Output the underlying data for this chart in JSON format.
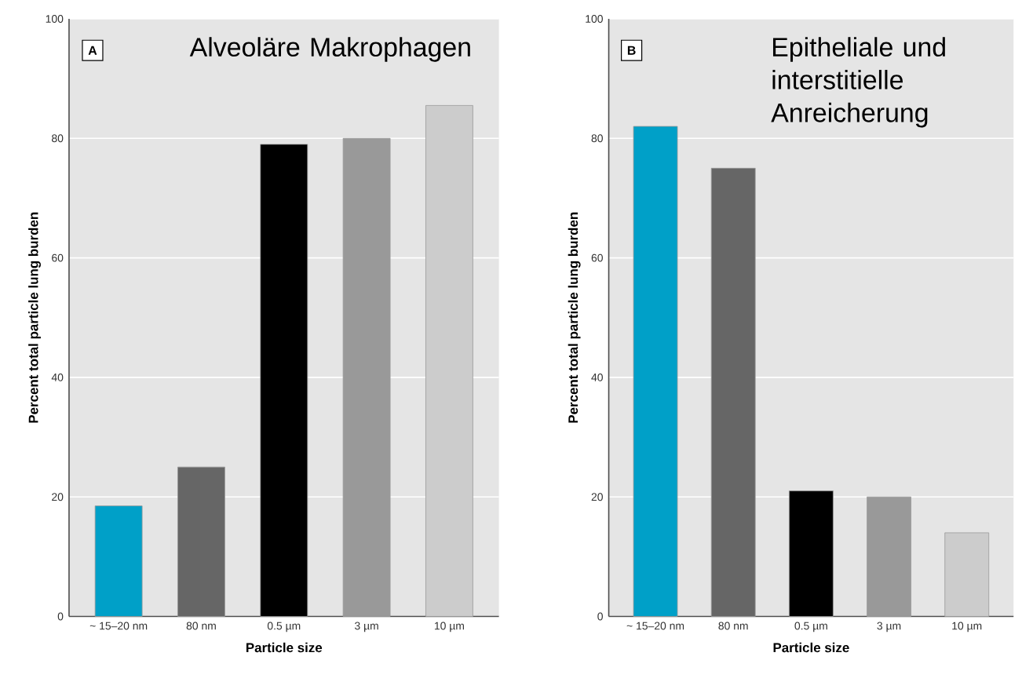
{
  "chart_data": [
    {
      "type": "bar",
      "title": "Alveoläre Makrophagen",
      "annotations": [
        "A"
      ],
      "xlabel": "Particle size",
      "ylabel": "Percent total particle lung burden",
      "categories": [
        "~ 15–20 nm",
        "80 nm",
        "0.5 µm",
        "3 µm",
        "10 µm"
      ],
      "values": [
        18.5,
        25,
        79,
        80,
        85.5
      ],
      "colors": [
        "#00a0c8",
        "#666666",
        "#000000",
        "#999999",
        "#cccccc"
      ],
      "ylim": [
        0,
        100
      ],
      "yticks": [
        0,
        20,
        40,
        60,
        80,
        100
      ],
      "grid": "y"
    },
    {
      "type": "bar",
      "title": "Epitheliale und interstitielle Anreicherung",
      "annotations": [
        "B"
      ],
      "xlabel": "Particle size",
      "ylabel": "Percent total particle lung burden",
      "categories": [
        "~ 15–20 nm",
        "80 nm",
        "0.5 µm",
        "3 µm",
        "10 µm"
      ],
      "values": [
        82,
        75,
        21,
        20,
        14
      ],
      "colors": [
        "#00a0c8",
        "#666666",
        "#000000",
        "#999999",
        "#cccccc"
      ],
      "ylim": [
        0,
        100
      ],
      "yticks": [
        0,
        20,
        40,
        60,
        80,
        100
      ],
      "grid": "y"
    }
  ]
}
